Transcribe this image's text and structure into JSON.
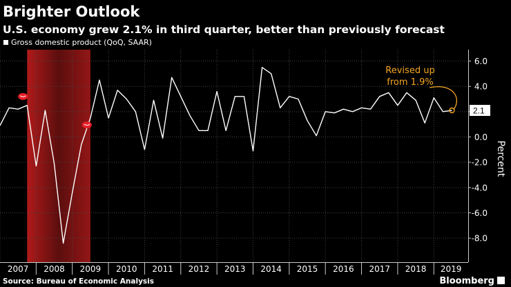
{
  "chart_data": {
    "type": "line",
    "title": "Brighter Outlook",
    "subtitle": "U.S. economy grew 2.1% in third quarter, better than previously forecast",
    "ylabel": "Percent",
    "ylim": [
      -9.9,
      6.9
    ],
    "yticks": [
      6.0,
      4.0,
      2.0,
      0.0,
      -2.0,
      -4.0,
      -6.0,
      -8.0
    ],
    "ytick_labels": [
      "6.0",
      "4.0",
      "2.0",
      "0.0",
      "-2.0",
      "-4.0",
      "-6.0",
      "-8.0"
    ],
    "year_labels": [
      "2007",
      "2008",
      "2009",
      "2010",
      "2011",
      "2012",
      "2013",
      "2014",
      "2015",
      "2016",
      "2017",
      "2018",
      "2019"
    ],
    "x_start": 2007.0,
    "x_end": 2019.95,
    "grid": true,
    "legend_position": "top-left",
    "series": [
      {
        "name": "Gross domestic product (QoQ, SAAR)",
        "color": "#ffffff",
        "x": [
          2007.0,
          2007.25,
          2007.5,
          2007.75,
          2008.0,
          2008.25,
          2008.5,
          2008.75,
          2009.0,
          2009.25,
          2009.5,
          2009.75,
          2010.0,
          2010.25,
          2010.5,
          2010.75,
          2011.0,
          2011.25,
          2011.5,
          2011.75,
          2012.0,
          2012.25,
          2012.5,
          2012.75,
          2013.0,
          2013.25,
          2013.5,
          2013.75,
          2014.0,
          2014.25,
          2014.5,
          2014.75,
          2015.0,
          2015.25,
          2015.5,
          2015.75,
          2016.0,
          2016.25,
          2016.5,
          2016.75,
          2017.0,
          2017.25,
          2017.5,
          2017.75,
          2018.0,
          2018.25,
          2018.5,
          2018.75,
          2019.0,
          2019.25,
          2019.5
        ],
        "values": [
          0.9,
          2.3,
          2.2,
          2.5,
          -2.3,
          2.1,
          -2.1,
          -8.4,
          -4.4,
          -0.6,
          1.5,
          4.5,
          1.5,
          3.7,
          3.0,
          2.0,
          -1.0,
          2.9,
          -0.1,
          4.7,
          3.2,
          1.7,
          0.5,
          0.5,
          3.6,
          0.5,
          3.2,
          3.2,
          -1.1,
          5.5,
          5.0,
          2.3,
          3.2,
          3.0,
          1.3,
          0.1,
          2.0,
          1.9,
          2.2,
          2.0,
          2.3,
          2.2,
          3.2,
          3.5,
          2.5,
          3.5,
          2.9,
          1.1,
          3.1,
          2.0,
          2.1
        ]
      }
    ],
    "recession_shading": {
      "start": 2007.75,
      "end": 2009.5
    },
    "current_value_label": "2.1",
    "annotation": {
      "text_lines": [
        "Revised up",
        "from 1.9%"
      ],
      "color": "#f5a623",
      "x": 2019.5,
      "y": 2.1
    },
    "markers": [
      {
        "x": 2007.75,
        "y": 3.2
      },
      {
        "x": 2009.5,
        "y": 0.95
      }
    ],
    "source": "Source: Bureau of Economic Analysis",
    "brand": "Bloomberg"
  }
}
